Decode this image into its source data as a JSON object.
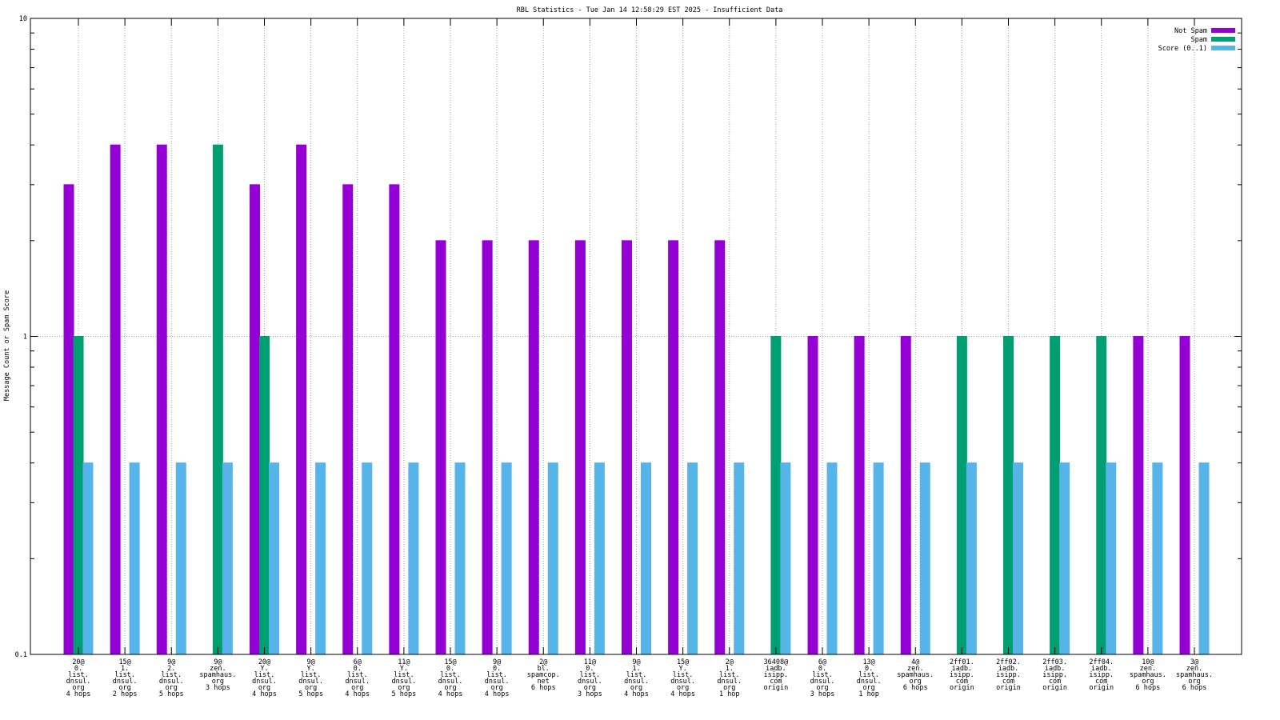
{
  "chart_data": {
    "type": "bar",
    "title": "RBL Statistics - Tue Jan 14 12:58:29 EST 2025 - Insufficient Data",
    "xlabel": "",
    "ylabel": "Message Count or Spam Score",
    "yscale": "log",
    "ylim": [
      0.1,
      10
    ],
    "yticks": [
      "0.1",
      "1",
      "10"
    ],
    "grid": "dotted",
    "legend_position": "top-right",
    "categories": [
      [
        "20@",
        "0.",
        "list.",
        "dnsul.",
        "org",
        "4 hops"
      ],
      [
        "15@",
        "1.",
        "list.",
        "dnsul.",
        "org",
        "2 hops"
      ],
      [
        "9@",
        "2.",
        "list.",
        "dnsul.",
        "org",
        "5 hops"
      ],
      [
        "9@",
        "zen.",
        "spamhaus.",
        "org",
        "3 hops"
      ],
      [
        "20@",
        "Y.",
        "list.",
        "dnsul.",
        "org",
        "4 hops"
      ],
      [
        "9@",
        "Y.",
        "list.",
        "dnsul.",
        "org",
        "5 hops"
      ],
      [
        "6@",
        "0.",
        "list.",
        "dnsul.",
        "org",
        "4 hops"
      ],
      [
        "11@",
        "Y.",
        "list.",
        "dnsul.",
        "org",
        "5 hops"
      ],
      [
        "15@",
        "0.",
        "list.",
        "dnsul.",
        "org",
        "4 hops"
      ],
      [
        "9@",
        "0.",
        "list.",
        "dnsul.",
        "org",
        "4 hops"
      ],
      [
        "2@",
        "bl.",
        "spamcop.",
        "net",
        "6 hops"
      ],
      [
        "11@",
        "0.",
        "list.",
        "dnsul.",
        "org",
        "3 hops"
      ],
      [
        "9@",
        "1.",
        "list.",
        "dnsul.",
        "org",
        "4 hops"
      ],
      [
        "15@",
        "Y.",
        "list.",
        "dnsul.",
        "org",
        "4 hops"
      ],
      [
        "2@",
        "1.",
        "list.",
        "dnsul.",
        "org",
        "1 hop"
      ],
      [
        "36408@",
        "iadb.",
        "isipp.",
        "com",
        "origin"
      ],
      [
        "6@",
        "0.",
        "list.",
        "dnsul.",
        "org",
        "3 hops"
      ],
      [
        "13@",
        "0.",
        "list.",
        "dnsul.",
        "org",
        "1 hop"
      ],
      [
        "4@",
        "zen.",
        "spamhaus.",
        "org",
        "6 hops"
      ],
      [
        "2ff01.",
        "iadb.",
        "isipp.",
        "com",
        "origin"
      ],
      [
        "2ff02.",
        "iadb.",
        "isipp.",
        "com",
        "origin"
      ],
      [
        "2ff03.",
        "iadb.",
        "isipp.",
        "com",
        "origin"
      ],
      [
        "2ff04.",
        "iadb.",
        "isipp.",
        "com",
        "origin"
      ],
      [
        "10@",
        "zen.",
        "spamhaus.",
        "org",
        "6 hops"
      ],
      [
        "3@",
        "zen.",
        "spamhaus.",
        "org",
        "6 hops"
      ]
    ],
    "series": [
      {
        "name": "Not Spam",
        "color": "#9400d3",
        "values": [
          3,
          4,
          4,
          0,
          3,
          4,
          3,
          3,
          2,
          2,
          2,
          2,
          2,
          2,
          2,
          0,
          1,
          1,
          1,
          0,
          0,
          0,
          0,
          1,
          1
        ]
      },
      {
        "name": "Spam",
        "color": "#009e73",
        "values": [
          1,
          0,
          0,
          4,
          1,
          0,
          0,
          0,
          0,
          0,
          0,
          0,
          0,
          0,
          0,
          1,
          0,
          0,
          0,
          1,
          1,
          1,
          1,
          0,
          0
        ]
      },
      {
        "name": "Score (0..1)",
        "color": "#56b4e9",
        "values": [
          0.4,
          0.4,
          0.4,
          0.4,
          0.4,
          0.4,
          0.4,
          0.4,
          0.4,
          0.4,
          0.4,
          0.4,
          0.4,
          0.4,
          0.4,
          0.4,
          0.4,
          0.4,
          0.4,
          0.4,
          0.4,
          0.4,
          0.4,
          0.4,
          0.4
        ]
      }
    ]
  }
}
